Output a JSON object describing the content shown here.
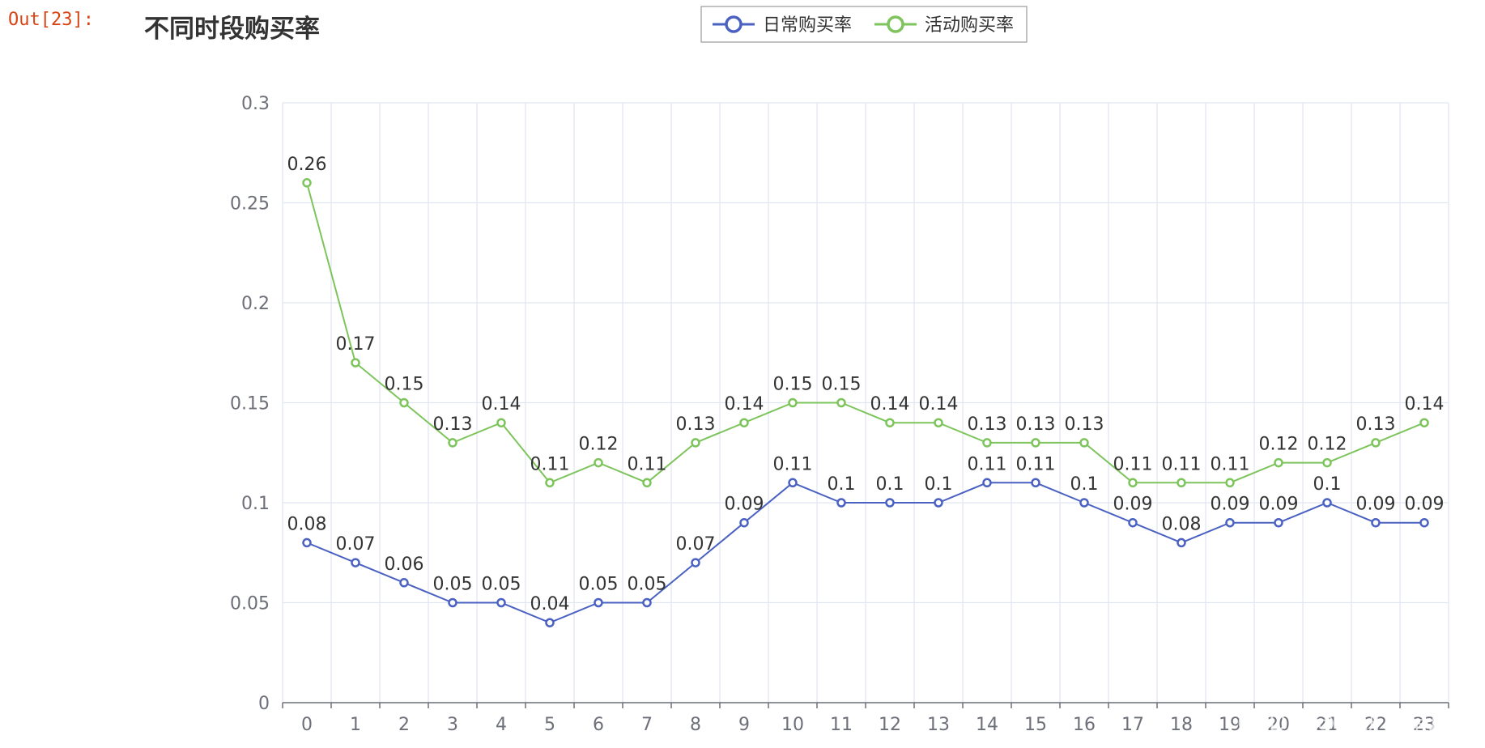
{
  "notebook": {
    "out_prompt": "Out[23]:"
  },
  "watermark": "CSDN @AI研习星球",
  "chart_data": {
    "type": "line",
    "title": "不同时段购买率",
    "legend_position": "top-center",
    "grid": true,
    "categories": [
      "0",
      "1",
      "2",
      "3",
      "4",
      "5",
      "6",
      "7",
      "8",
      "9",
      "10",
      "11",
      "12",
      "13",
      "14",
      "15",
      "16",
      "17",
      "18",
      "19",
      "20",
      "21",
      "22",
      "23"
    ],
    "ylim": [
      0,
      0.3
    ],
    "yticks": [
      "0",
      "0.05",
      "0.1",
      "0.15",
      "0.2",
      "0.25",
      "0.3"
    ],
    "series": [
      {
        "name": "日常购买率",
        "color": "#4a61c1",
        "values": [
          0.08,
          0.07,
          0.06,
          0.05,
          0.05,
          0.04,
          0.05,
          0.05,
          0.07,
          0.09,
          0.11,
          0.1,
          0.1,
          0.1,
          0.11,
          0.11,
          0.1,
          0.09,
          0.08,
          0.09,
          0.09,
          0.1,
          0.09,
          0.09
        ]
      },
      {
        "name": "活动购买率",
        "color": "#7dc45c",
        "values": [
          0.26,
          0.17,
          0.15,
          0.13,
          0.14,
          0.11,
          0.12,
          0.11,
          0.13,
          0.14,
          0.15,
          0.15,
          0.14,
          0.14,
          0.13,
          0.13,
          0.13,
          0.11,
          0.11,
          0.11,
          0.12,
          0.12,
          0.13,
          0.14
        ]
      }
    ]
  }
}
